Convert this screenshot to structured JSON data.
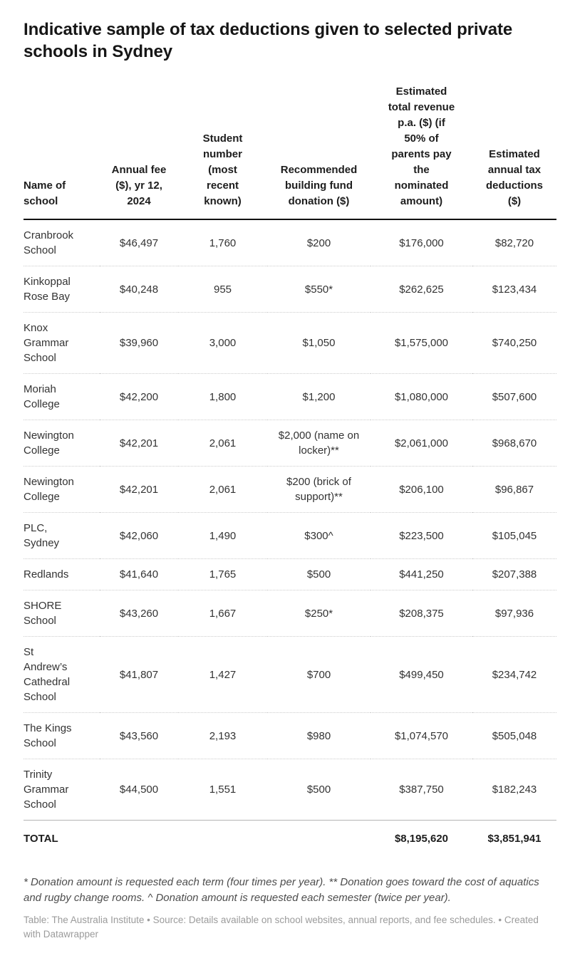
{
  "title": "Indicative sample of tax deductions given to selected private schools in Sydney",
  "chart_data": {
    "type": "table",
    "title": "Indicative sample of tax deductions given to selected private schools in Sydney",
    "columns": [
      "Name of school",
      "Annual fee ($), yr 12, 2024",
      "Student number (most recent known)",
      "Recommended building fund donation ($)",
      "Estimated total revenue p.a. ($) (if 50% of parents pay the nominated amount)",
      "Estimated annual tax deductions ($)"
    ],
    "rows": [
      [
        "Cranbrook School",
        "$46,497",
        "1,760",
        "$200",
        "$176,000",
        "$82,720"
      ],
      [
        "Kinkoppal Rose Bay",
        "$40,248",
        "955",
        "$550*",
        "$262,625",
        "$123,434"
      ],
      [
        "Knox Grammar School",
        "$39,960",
        "3,000",
        "$1,050",
        "$1,575,000",
        "$740,250"
      ],
      [
        "Moriah College",
        "$42,200",
        "1,800",
        "$1,200",
        "$1,080,000",
        "$507,600"
      ],
      [
        "Newington College",
        "$42,201",
        "2,061",
        "$2,000 (name on locker)**",
        "$2,061,000",
        "$968,670"
      ],
      [
        "Newington College",
        "$42,201",
        "2,061",
        "$200 (brick of support)**",
        "$206,100",
        "$96,867"
      ],
      [
        "PLC, Sydney",
        "$42,060",
        "1,490",
        "$300^",
        "$223,500",
        "$105,045"
      ],
      [
        "Redlands",
        "$41,640",
        "1,765",
        "$500",
        "$441,250",
        "$207,388"
      ],
      [
        "SHORE School",
        "$43,260",
        "1,667",
        "$250*",
        "$208,375",
        "$97,936"
      ],
      [
        "St Andrew’s Cathedral School",
        "$41,807",
        "1,427",
        "$700",
        "$499,450",
        "$234,742"
      ],
      [
        "The Kings School",
        "$43,560",
        "2,193",
        "$980",
        "$1,074,570",
        "$505,048"
      ],
      [
        "Trinity Grammar School",
        "$44,500",
        "1,551",
        "$500",
        "$387,750",
        "$182,243"
      ]
    ],
    "total": {
      "label": "TOTAL",
      "fee": "",
      "students": "",
      "donation": "",
      "revenue": "$8,195,620",
      "deductions": "$3,851,941"
    }
  },
  "footnote": "* Donation amount is requested each term (four times per year). ** Donation goes toward the cost of aquatics and rugby change rooms. ^ Donation amount is requested each semester (twice per year).",
  "footer": "Table: The Australia Institute • Source: Details available on school websites, annual reports, and fee schedules.  • Created with Datawrapper"
}
